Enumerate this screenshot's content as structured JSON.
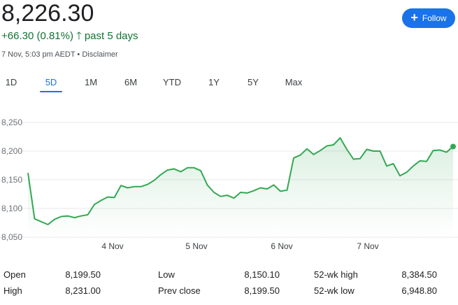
{
  "header": {
    "price": "8,226.30",
    "change": "+66.30 (0.81%)",
    "period": "past 5 days",
    "meta": "7 Nov, 5:03 pm AEDT • Disclaimer",
    "follow_label": "Follow"
  },
  "tabs": [
    {
      "label": "1D"
    },
    {
      "label": "5D",
      "active": true
    },
    {
      "label": "1M"
    },
    {
      "label": "6M"
    },
    {
      "label": "YTD"
    },
    {
      "label": "1Y"
    },
    {
      "label": "5Y"
    },
    {
      "label": "Max"
    }
  ],
  "colors": {
    "up": "#137333",
    "line": "#34a853",
    "accent": "#1a73e8"
  },
  "chart_data": {
    "type": "line",
    "y_ticks": [
      "8,250",
      "8,200",
      "8,150",
      "8,100",
      "8,050"
    ],
    "x_ticks": [
      "4 Nov",
      "5 Nov",
      "6 Nov",
      "7 Nov"
    ],
    "ylim": [
      8050,
      8250
    ],
    "grid": true,
    "series": [
      {
        "values": [
          8162,
          8082,
          8077,
          8072,
          8081,
          8086,
          8087,
          8084,
          8087,
          8089,
          8107,
          8114,
          8120,
          8119,
          8140,
          8136,
          8138,
          8138,
          8142,
          8149,
          8159,
          8167,
          8169,
          8164,
          8171,
          8171,
          8166,
          8141,
          8128,
          8121,
          8123,
          8118,
          8128,
          8127,
          8131,
          8136,
          8134,
          8141,
          8130,
          8132,
          8188,
          8193,
          8204,
          8194,
          8201,
          8209,
          8211,
          8223,
          8203,
          8186,
          8187,
          8203,
          8200,
          8200,
          8174,
          8178,
          8157,
          8163,
          8174,
          8183,
          8182,
          8201,
          8202,
          8198,
          8208
        ]
      }
    ]
  },
  "stats": [
    {
      "label": "Open",
      "value": "8,199.50"
    },
    {
      "label": "Low",
      "value": "8,150.10"
    },
    {
      "label": "52-wk high",
      "value": "8,384.50"
    },
    {
      "label": "High",
      "value": "8,231.00"
    },
    {
      "label": "Prev close",
      "value": "8,199.50"
    },
    {
      "label": "52-wk low",
      "value": "6,948.80"
    }
  ]
}
